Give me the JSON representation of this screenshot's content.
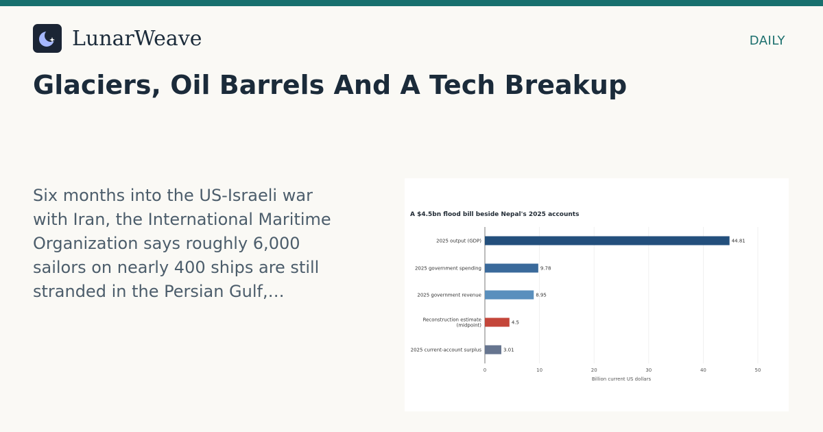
{
  "brand": {
    "name": "LunarWeave",
    "logo_icon": "crescent-moon-star-icon",
    "logo_bg": "#1b2535",
    "logo_fg": "#a6b8ff"
  },
  "section": "DAILY",
  "headline": "Glaciers, Oil Barrels And A Tech Breakup",
  "summary": "Six months into the US-Israeli war with Iran, the International Maritime Organization says roughly 6,000 sailors on nearly 400 ships are still stranded in the Persian Gulf,…",
  "colors": {
    "accent": "#18706e",
    "background": "#faf9f5"
  },
  "chart_data": {
    "type": "bar",
    "orientation": "horizontal",
    "title": "A $4.5bn flood bill beside Nepal's 2025 accounts",
    "xlabel": "Billion current US dollars",
    "ylabel": "",
    "xlim": [
      0,
      50
    ],
    "xticks": [
      0,
      10,
      20,
      30,
      40,
      50
    ],
    "grid": "vertical",
    "categories": [
      "2025 output (GDP)",
      "2025 government spending",
      "2025 government revenue",
      "Reconstruction estimate (midpoint)",
      "2025 current-account surplus"
    ],
    "category_lines": [
      [
        "2025 output (GDP)"
      ],
      [
        "2025 government spending"
      ],
      [
        "2025 government revenue"
      ],
      [
        "Reconstruction estimate",
        "(midpoint)"
      ],
      [
        "2025 current-account surplus"
      ]
    ],
    "values": [
      44.81,
      9.78,
      8.95,
      4.5,
      3.01
    ],
    "value_labels": [
      "44.81",
      "9.78",
      "8.95",
      "4.5",
      "3.01"
    ],
    "colors": [
      "#234f7c",
      "#3a6a9b",
      "#5a8fbd",
      "#c4463a",
      "#66758f"
    ]
  }
}
